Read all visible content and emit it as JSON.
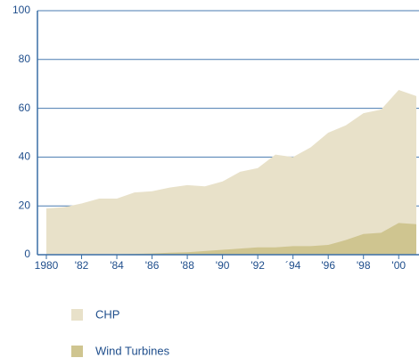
{
  "chart_data": {
    "type": "area",
    "x": [
      1980,
      1981,
      1982,
      1983,
      1984,
      1985,
      1986,
      1987,
      1988,
      1989,
      1990,
      1991,
      1992,
      1993,
      1994,
      1995,
      1996,
      1997,
      1998,
      1999,
      2000,
      2001
    ],
    "series": [
      {
        "name": "CHP",
        "color": "#e8e1c9",
        "values": [
          19,
          19.5,
          21,
          23,
          23,
          25.5,
          26,
          27.5,
          28.5,
          28,
          30,
          34,
          35.5,
          41,
          40,
          44,
          50,
          53,
          58,
          59.5,
          67.5,
          65
        ]
      },
      {
        "name": "Wind Turbines",
        "color": "#cfc590",
        "values": [
          0,
          0,
          0,
          0,
          0.2,
          0.3,
          0.5,
          0.8,
          1,
          1.5,
          2,
          2.5,
          3,
          3,
          3.5,
          3.5,
          4,
          6,
          8.5,
          9,
          13,
          12.5
        ]
      }
    ],
    "xlim": [
      1980,
      2001
    ],
    "xticks": [
      1980,
      {
        "value": 1982,
        "label": "'82"
      },
      {
        "value": 1984,
        "label": "'84"
      },
      {
        "value": 1986,
        "label": "'86"
      },
      {
        "value": 1988,
        "label": "'88"
      },
      {
        "value": 1990,
        "label": "'90"
      },
      {
        "value": 1992,
        "label": "'92"
      },
      {
        "value": 1994,
        "label": "´94"
      },
      {
        "value": 1996,
        "label": "'96"
      },
      {
        "value": 1998,
        "label": "'98"
      },
      {
        "value": 2000,
        "label": "'00"
      }
    ],
    "ylim": [
      0,
      100
    ],
    "yticks": [
      0,
      20,
      40,
      60,
      80,
      100
    ],
    "grid": true
  }
}
